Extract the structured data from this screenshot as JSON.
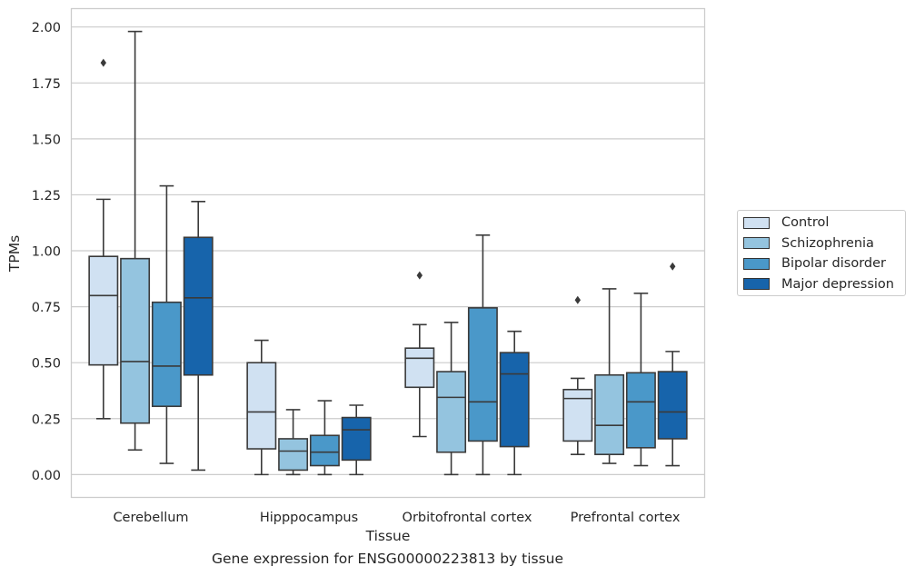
{
  "chart_data": {
    "type": "box",
    "xlabel": "Tissue",
    "ylabel": "TPMs",
    "caption": "Gene expression for ENSG00000223813 by tissue",
    "ylim": [
      -0.1,
      2.08
    ],
    "yticks": [
      0.0,
      0.25,
      0.5,
      0.75,
      1.0,
      1.25,
      1.5,
      1.75,
      2.0
    ],
    "ytick_labels": [
      "0.00",
      "0.25",
      "0.50",
      "0.75",
      "1.00",
      "1.25",
      "1.50",
      "1.75",
      "2.00"
    ],
    "grid": "horizontal",
    "legend_position": "right",
    "categories": [
      "Cerebellum",
      "Hipppocampus",
      "Orbitofrontal cortex",
      "Prefrontal cortex"
    ],
    "series": [
      {
        "name": "Control",
        "color": "#d0e1f2",
        "boxes": [
          {
            "whisker_low": 0.25,
            "q1": 0.49,
            "median": 0.8,
            "q3": 0.975,
            "whisker_high": 1.23,
            "outliers": [
              1.84
            ]
          },
          {
            "whisker_low": 0.0,
            "q1": 0.115,
            "median": 0.28,
            "q3": 0.5,
            "whisker_high": 0.6,
            "outliers": []
          },
          {
            "whisker_low": 0.17,
            "q1": 0.39,
            "median": 0.52,
            "q3": 0.565,
            "whisker_high": 0.67,
            "outliers": [
              0.89
            ]
          },
          {
            "whisker_low": 0.09,
            "q1": 0.15,
            "median": 0.34,
            "q3": 0.38,
            "whisker_high": 0.43,
            "outliers": [
              0.78
            ]
          }
        ]
      },
      {
        "name": "Schizophrenia",
        "color": "#94c4df",
        "boxes": [
          {
            "whisker_low": 0.11,
            "q1": 0.23,
            "median": 0.505,
            "q3": 0.965,
            "whisker_high": 1.98,
            "outliers": []
          },
          {
            "whisker_low": 0.0,
            "q1": 0.02,
            "median": 0.105,
            "q3": 0.16,
            "whisker_high": 0.29,
            "outliers": []
          },
          {
            "whisker_low": 0.0,
            "q1": 0.1,
            "median": 0.345,
            "q3": 0.46,
            "whisker_high": 0.68,
            "outliers": []
          },
          {
            "whisker_low": 0.05,
            "q1": 0.09,
            "median": 0.22,
            "q3": 0.445,
            "whisker_high": 0.83,
            "outliers": []
          }
        ]
      },
      {
        "name": "Bipolar disorder",
        "color": "#4a98c9",
        "boxes": [
          {
            "whisker_low": 0.05,
            "q1": 0.305,
            "median": 0.485,
            "q3": 0.77,
            "whisker_high": 1.29,
            "outliers": []
          },
          {
            "whisker_low": 0.0,
            "q1": 0.04,
            "median": 0.1,
            "q3": 0.175,
            "whisker_high": 0.33,
            "outliers": []
          },
          {
            "whisker_low": 0.0,
            "q1": 0.15,
            "median": 0.325,
            "q3": 0.745,
            "whisker_high": 1.07,
            "outliers": []
          },
          {
            "whisker_low": 0.04,
            "q1": 0.12,
            "median": 0.325,
            "q3": 0.455,
            "whisker_high": 0.81,
            "outliers": []
          }
        ]
      },
      {
        "name": "Major depression",
        "color": "#1764ab",
        "boxes": [
          {
            "whisker_low": 0.02,
            "q1": 0.445,
            "median": 0.79,
            "q3": 1.06,
            "whisker_high": 1.22,
            "outliers": []
          },
          {
            "whisker_low": 0.0,
            "q1": 0.065,
            "median": 0.2,
            "q3": 0.255,
            "whisker_high": 0.31,
            "outliers": []
          },
          {
            "whisker_low": 0.0,
            "q1": 0.125,
            "median": 0.45,
            "q3": 0.545,
            "whisker_high": 0.64,
            "outliers": []
          },
          {
            "whisker_low": 0.04,
            "q1": 0.16,
            "median": 0.28,
            "q3": 0.46,
            "whisker_high": 0.55,
            "outliers": [
              0.93
            ]
          }
        ]
      }
    ]
  }
}
